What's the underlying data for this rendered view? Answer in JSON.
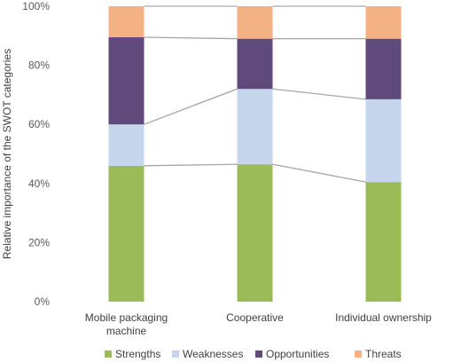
{
  "chart_data": {
    "type": "bar",
    "stacked": true,
    "ylabel": "Relative importance of the SWOT categories",
    "xlabel": "",
    "ylim": [
      0,
      100
    ],
    "yticks": [
      "0%",
      "20%",
      "40%",
      "60%",
      "80%",
      "100%"
    ],
    "categories": [
      [
        "Mobile packaging",
        "machine"
      ],
      [
        "Cooperative"
      ],
      [
        "Individual ownership"
      ]
    ],
    "series": [
      {
        "name": "Strengths",
        "color": "#9bbb59",
        "values": [
          46,
          46.5,
          40.5
        ]
      },
      {
        "name": "Weaknesses",
        "color": "#c5d5eb",
        "values": [
          14,
          25.5,
          28
        ]
      },
      {
        "name": "Opportunities",
        "color": "#604a7b",
        "values": [
          29.5,
          17,
          20.5
        ]
      },
      {
        "name": "Threats",
        "color": "#f4b183",
        "values": [
          10.5,
          11,
          11
        ]
      }
    ],
    "connector_color": "#a6a6a6",
    "legend_position": "bottom",
    "grid": false
  }
}
